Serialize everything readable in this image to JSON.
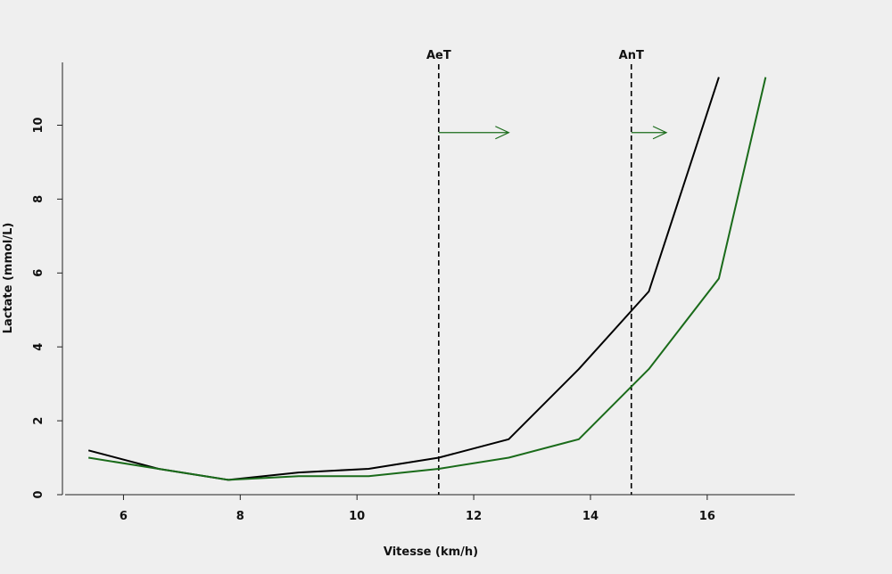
{
  "chart_data": {
    "type": "line",
    "xlabel": "Vitesse (km/h)",
    "ylabel": "Lactate (mmol/L)",
    "xlim": [
      5,
      17.5
    ],
    "ylim": [
      0,
      11.7
    ],
    "xticks": [
      "6",
      "8",
      "10",
      "12",
      "14",
      "16"
    ],
    "yticks": [
      "0",
      "2",
      "4",
      "6",
      "8",
      "10"
    ],
    "grid": false,
    "legend": "none",
    "series": [
      {
        "color": "#000000",
        "x": [
          5.4,
          6.6,
          7.8,
          9.0,
          10.2,
          11.4,
          12.6,
          13.8,
          15.0,
          16.2
        ],
        "y": [
          1.2,
          0.7,
          0.4,
          0.6,
          0.7,
          1.0,
          1.5,
          3.4,
          5.5,
          11.3
        ]
      },
      {
        "color": "#1a6b1a",
        "x": [
          5.4,
          6.6,
          7.8,
          9.0,
          10.2,
          11.4,
          12.6,
          13.8,
          15.0,
          16.2,
          17.0
        ],
        "y": [
          1.0,
          0.7,
          0.4,
          0.5,
          0.5,
          0.7,
          1.0,
          1.5,
          3.4,
          5.85,
          11.3
        ]
      }
    ],
    "thresholds": [
      {
        "label": "AeT",
        "x": 11.4,
        "shift_to": 12.6
      },
      {
        "label": "AnT",
        "x": 14.7,
        "shift_to": 15.3
      }
    ],
    "arrow_level": 9.8,
    "arrow_color": "#1a6b1a"
  }
}
